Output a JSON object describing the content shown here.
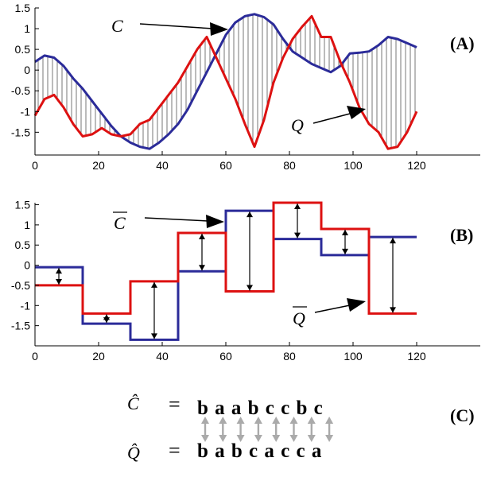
{
  "chart_data": [
    {
      "panel": "(A)",
      "type": "line",
      "xlim": [
        0,
        140
      ],
      "ylim": [
        -2.05,
        1.5
      ],
      "x_ticks": [
        0,
        20,
        40,
        60,
        80,
        100,
        120
      ],
      "y_ticks": [
        -1.5,
        -1,
        -0.5,
        0,
        0.5,
        1,
        1.5
      ],
      "x_tick_labels": [
        "0",
        "20",
        "40",
        "60",
        "80",
        "100",
        "120"
      ],
      "y_tick_labels": [
        "-1.5",
        "-1",
        "-0.5",
        "0",
        "0.5",
        "1",
        "1.5"
      ],
      "series": [
        {
          "name": "C",
          "color": "#2b2b99",
          "x": [
            0,
            3,
            6,
            9,
            12,
            15,
            18,
            21,
            24,
            27,
            30,
            33,
            36,
            39,
            42,
            45,
            48,
            51,
            54,
            57,
            60,
            63,
            66,
            69,
            72,
            75,
            78,
            81,
            84,
            87,
            90,
            93,
            96,
            99,
            102,
            105,
            108,
            111,
            114,
            117,
            120
          ],
          "y": [
            0.2,
            0.35,
            0.3,
            0.1,
            -0.2,
            -0.45,
            -0.75,
            -1.05,
            -1.35,
            -1.6,
            -1.75,
            -1.85,
            -1.9,
            -1.75,
            -1.55,
            -1.3,
            -0.95,
            -0.5,
            -0.05,
            0.4,
            0.85,
            1.15,
            1.3,
            1.35,
            1.28,
            1.1,
            0.75,
            0.45,
            0.3,
            0.15,
            0.05,
            -0.05,
            0.1,
            0.4,
            0.42,
            0.45,
            0.6,
            0.8,
            0.75,
            0.65,
            0.55
          ]
        },
        {
          "name": "Q",
          "color": "#dd1111",
          "x": [
            0,
            3,
            6,
            9,
            12,
            15,
            18,
            21,
            24,
            27,
            30,
            33,
            36,
            39,
            42,
            45,
            48,
            51,
            54,
            57,
            60,
            63,
            66,
            69,
            72,
            75,
            78,
            81,
            84,
            87,
            90,
            93,
            96,
            99,
            102,
            105,
            108,
            111,
            114,
            117,
            120
          ],
          "y": [
            -1.1,
            -0.7,
            -0.6,
            -0.9,
            -1.3,
            -1.6,
            -1.55,
            -1.4,
            -1.55,
            -1.6,
            -1.55,
            -1.3,
            -1.2,
            -0.9,
            -0.6,
            -0.3,
            0.1,
            0.5,
            0.8,
            0.3,
            -0.2,
            -0.7,
            -1.3,
            -1.85,
            -1.2,
            -0.3,
            0.3,
            0.75,
            1.05,
            1.3,
            0.8,
            0.8,
            0.2,
            -0.3,
            -0.9,
            -1.3,
            -1.5,
            -1.9,
            -1.85,
            -1.5,
            -1.0
          ]
        }
      ],
      "annotations": [
        "C",
        "Q"
      ]
    },
    {
      "panel": "(B)",
      "type": "step",
      "xlim": [
        0,
        140
      ],
      "ylim": [
        -2.0,
        1.55
      ],
      "x_ticks": [
        0,
        20,
        40,
        60,
        80,
        100,
        120
      ],
      "y_ticks": [
        -1.5,
        -1,
        -0.5,
        0,
        0.5,
        1,
        1.5
      ],
      "x_tick_labels": [
        "0",
        "20",
        "40",
        "60",
        "80",
        "100",
        "120"
      ],
      "y_tick_labels": [
        "-1.5",
        "-1",
        "-0.5",
        "0",
        "0.5",
        "1",
        "1.5"
      ],
      "segment_edges": [
        0,
        15,
        30,
        45,
        60,
        75,
        90,
        105,
        120
      ],
      "series": [
        {
          "name": "C̄",
          "color": "#2b2b99",
          "values": [
            -0.05,
            -1.45,
            -1.85,
            -0.15,
            1.35,
            0.65,
            0.25,
            0.7
          ]
        },
        {
          "name": "Q̄",
          "color": "#dd1111",
          "values": [
            -0.5,
            -1.2,
            -0.4,
            0.8,
            -0.65,
            1.55,
            0.9,
            -1.2
          ]
        }
      ],
      "annotations": [
        "C̄",
        "Q̄"
      ]
    }
  ],
  "labels": {
    "panel_a": "(A)",
    "panel_b": "(B)",
    "panel_c": "(C)",
    "c_anno": "C",
    "q_anno": "Q",
    "cbar_anno": "C",
    "qbar_anno": "Q"
  },
  "symbolic": {
    "c_hat": "Ĉ",
    "q_hat": "Q̂",
    "equals": "=",
    "c_string": "b a a b c c b c",
    "q_string": "b a b c a c c a",
    "arrow_color": "#aaaaaa"
  }
}
